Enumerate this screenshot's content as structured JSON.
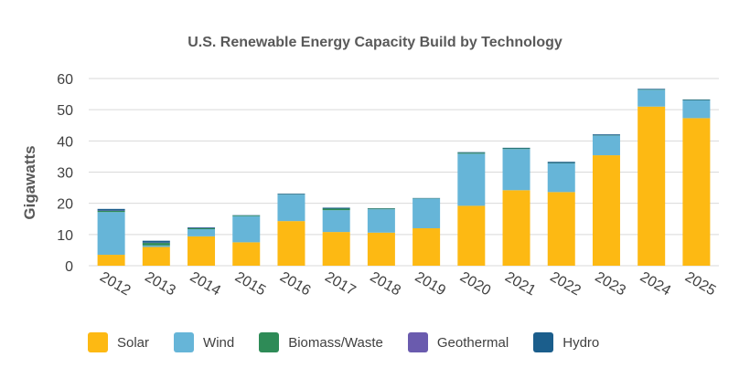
{
  "chart_data": {
    "type": "bar",
    "stacked": true,
    "title": "U.S. Renewable Energy Capacity Build by Technology",
    "ylabel": "Gigawatts",
    "xlabel": "",
    "ylim": [
      0,
      60
    ],
    "yticks": [
      0,
      10,
      20,
      30,
      40,
      50,
      60
    ],
    "grid": true,
    "legend_position": "bottom",
    "categories": [
      "2012",
      "2013",
      "2014",
      "2015",
      "2016",
      "2017",
      "2018",
      "2019",
      "2020",
      "2021",
      "2022",
      "2023",
      "2024",
      "2025"
    ],
    "series": [
      {
        "name": "Solar",
        "color": "#FDB913",
        "values": [
          3.5,
          6.0,
          9.4,
          7.5,
          14.3,
          10.8,
          10.6,
          12.0,
          19.2,
          24.2,
          23.6,
          35.4,
          51.0,
          47.3
        ]
      },
      {
        "name": "Wind",
        "color": "#66B5D8",
        "values": [
          13.7,
          0.5,
          2.3,
          8.4,
          8.5,
          7.0,
          7.5,
          9.5,
          16.7,
          13.2,
          9.2,
          6.3,
          5.4,
          5.7
        ]
      },
      {
        "name": "Biomass/Waste",
        "color": "#2E8B57",
        "values": [
          0.4,
          0.8,
          0.3,
          0.2,
          0.1,
          0.5,
          0.2,
          0.1,
          0.3,
          0.2,
          0.1,
          0.1,
          0.1,
          0.1
        ]
      },
      {
        "name": "Geothermal",
        "color": "#6A5BAE",
        "values": [
          0.1,
          0.1,
          0.1,
          0.0,
          0.0,
          0.0,
          0.0,
          0.0,
          0.0,
          0.0,
          0.0,
          0.0,
          0.0,
          0.0
        ]
      },
      {
        "name": "Hydro",
        "color": "#1B5E8C",
        "values": [
          0.5,
          0.6,
          0.2,
          0.1,
          0.2,
          0.3,
          0.1,
          0.1,
          0.2,
          0.2,
          0.4,
          0.3,
          0.2,
          0.2
        ]
      }
    ]
  }
}
